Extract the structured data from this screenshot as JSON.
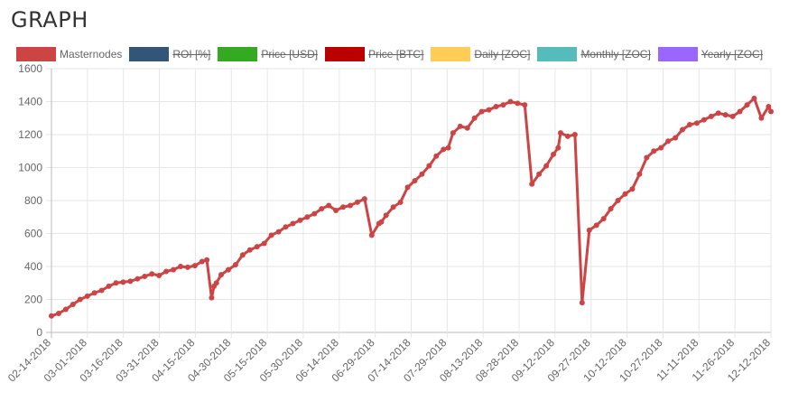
{
  "page": {
    "title": "GRAPH"
  },
  "legend": [
    {
      "label": "Masternodes",
      "color": "#cc4444",
      "hidden": false
    },
    {
      "label": "ROI [%]",
      "color": "#335577",
      "hidden": true
    },
    {
      "label": "Price [USD]",
      "color": "#33aa22",
      "hidden": true
    },
    {
      "label": "Price [BTC]",
      "color": "#bb0000",
      "hidden": true
    },
    {
      "label": "Daily [ZOC]",
      "color": "#ffcc55",
      "hidden": true
    },
    {
      "label": "Monthly [ZOC]",
      "color": "#55bbbb",
      "hidden": true
    },
    {
      "label": "Yearly [ZOC]",
      "color": "#9966ff",
      "hidden": true
    }
  ],
  "chart_data": {
    "type": "line",
    "title": "",
    "xlabel": "",
    "ylabel": "",
    "ylim": [
      0,
      1600
    ],
    "yticks": [
      0,
      200,
      400,
      600,
      800,
      1000,
      1200,
      1400,
      1600
    ],
    "x_tick_labels": [
      "02-14-2018",
      "03-01-2018",
      "03-16-2018",
      "03-31-2018",
      "04-15-2018",
      "04-30-2018",
      "05-15-2018",
      "05-30-2018",
      "06-14-2018",
      "06-29-2018",
      "07-14-2018",
      "07-29-2018",
      "08-13-2018",
      "08-28-2018",
      "09-12-2018",
      "09-27-2018",
      "10-12-2018",
      "10-27-2018",
      "11-11-2018",
      "11-26-2018",
      "12-12-2018"
    ],
    "grid": true,
    "legend_position": "top",
    "series": [
      {
        "name": "Masternodes",
        "color": "#cc4444",
        "x": [
          0,
          3,
          6,
          9,
          12,
          15,
          18,
          21,
          24,
          27,
          30,
          33,
          36,
          39,
          42,
          45,
          48,
          51,
          54,
          57,
          60,
          63,
          65,
          67,
          68,
          69,
          71,
          74,
          77,
          80,
          83,
          86,
          89,
          92,
          95,
          98,
          101,
          104,
          107,
          110,
          113,
          116,
          119,
          122,
          125,
          128,
          131,
          134,
          137,
          138,
          140,
          143,
          146,
          149,
          152,
          155,
          158,
          161,
          164,
          166,
          168,
          171,
          174,
          177,
          180,
          183,
          186,
          189,
          192,
          195,
          198,
          201,
          204,
          207,
          210,
          212,
          213,
          216,
          219,
          222,
          225,
          228,
          231,
          234,
          237,
          240,
          243,
          246,
          249,
          252,
          255,
          258,
          261,
          264,
          267,
          270,
          273,
          276,
          279,
          282,
          285,
          288,
          291,
          294,
          297,
          300,
          301
        ],
        "y": [
          100,
          115,
          140,
          170,
          200,
          220,
          240,
          255,
          280,
          300,
          305,
          310,
          325,
          340,
          355,
          345,
          370,
          380,
          400,
          395,
          405,
          430,
          440,
          210,
          280,
          300,
          350,
          380,
          410,
          470,
          500,
          520,
          540,
          590,
          610,
          640,
          660,
          680,
          700,
          720,
          750,
          770,
          740,
          760,
          770,
          790,
          810,
          590,
          660,
          670,
          710,
          760,
          790,
          880,
          920,
          960,
          1010,
          1070,
          1110,
          1120,
          1210,
          1250,
          1240,
          1300,
          1340,
          1350,
          1370,
          1380,
          1400,
          1390,
          1380,
          900,
          960,
          1010,
          1080,
          1120,
          1210,
          1190,
          1200,
          180,
          620,
          650,
          690,
          750,
          800,
          840,
          870,
          960,
          1060,
          1100,
          1120,
          1160,
          1180,
          1230,
          1260,
          1270,
          1290,
          1310,
          1330,
          1320,
          1310,
          1340,
          1380,
          1420,
          1300,
          1370,
          1340
        ],
        "markers": true
      }
    ]
  }
}
